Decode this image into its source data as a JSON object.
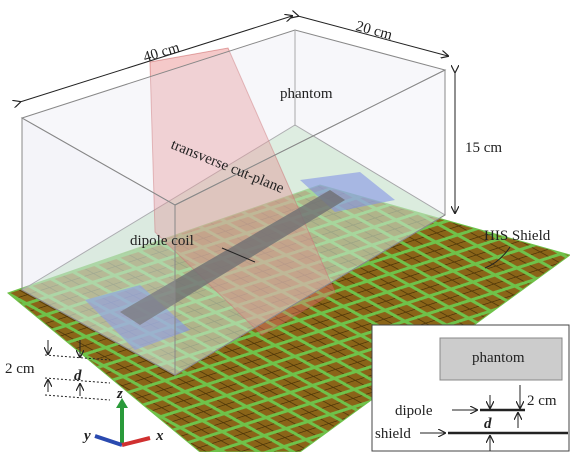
{
  "labels": {
    "length": "40 cm",
    "width": "20 cm",
    "height": "15 cm",
    "phantom": "phantom",
    "cut_plane": "transverse cut-plane",
    "dipole_coil": "dipole coil",
    "shield": "HIS Shield",
    "gap": "2 cm",
    "distance": "d"
  },
  "axes": {
    "z": "z",
    "y": "y",
    "x": "x"
  },
  "inset": {
    "phantom": "phantom",
    "dipole": "dipole",
    "gap": "2 cm",
    "shield": "shield",
    "distance": "d"
  }
}
